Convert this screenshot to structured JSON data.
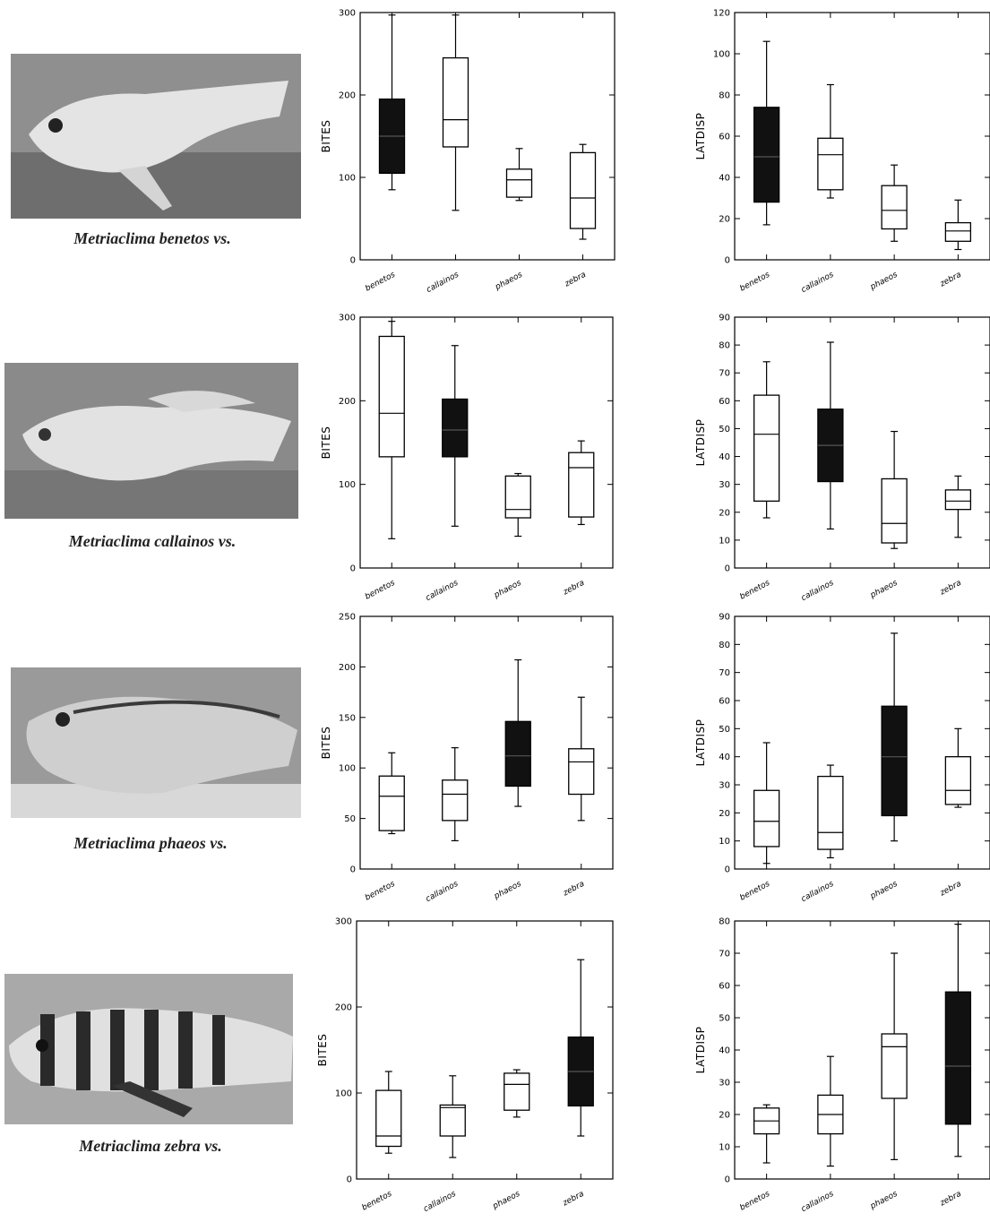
{
  "chart_data": [
    {
      "type": "box",
      "panel": "row1-bites",
      "ylabel": "BITES",
      "ylim": [
        0,
        300
      ],
      "yticks": [
        0,
        100,
        200,
        300
      ],
      "categories": [
        "benetos",
        "callainos",
        "phaeos",
        "zebra"
      ],
      "highlight": 0,
      "boxes": [
        {
          "min": 85,
          "q1": 105,
          "median": 150,
          "q3": 195,
          "max": 297
        },
        {
          "min": 60,
          "q1": 137,
          "median": 170,
          "q3": 245,
          "max": 297
        },
        {
          "min": 72,
          "q1": 76,
          "median": 97,
          "q3": 110,
          "max": 135
        },
        {
          "min": 25,
          "q1": 38,
          "median": 75,
          "q3": 130,
          "max": 140
        }
      ]
    },
    {
      "type": "box",
      "panel": "row1-latdisp",
      "ylabel": "LATDISP",
      "ylim": [
        0,
        120
      ],
      "yticks": [
        0,
        20,
        40,
        60,
        80,
        100,
        120
      ],
      "categories": [
        "benetos",
        "callainos",
        "phaeos",
        "zebra"
      ],
      "highlight": 0,
      "boxes": [
        {
          "min": 17,
          "q1": 28,
          "median": 50,
          "q3": 74,
          "max": 106
        },
        {
          "min": 30,
          "q1": 34,
          "median": 51,
          "q3": 59,
          "max": 85
        },
        {
          "min": 9,
          "q1": 15,
          "median": 24,
          "q3": 36,
          "max": 46
        },
        {
          "min": 5,
          "q1": 9,
          "median": 14,
          "q3": 18,
          "max": 29
        }
      ]
    },
    {
      "type": "box",
      "panel": "row2-bites",
      "ylabel": "BITES",
      "ylim": [
        0,
        300
      ],
      "yticks": [
        0,
        100,
        200,
        300
      ],
      "categories": [
        "benetos",
        "callainos",
        "phaeos",
        "zebra"
      ],
      "highlight": 1,
      "boxes": [
        {
          "min": 35,
          "q1": 133,
          "median": 185,
          "q3": 277,
          "max": 295
        },
        {
          "min": 50,
          "q1": 133,
          "median": 165,
          "q3": 202,
          "max": 266
        },
        {
          "min": 38,
          "q1": 60,
          "median": 70,
          "q3": 110,
          "max": 113
        },
        {
          "min": 52,
          "q1": 61,
          "median": 120,
          "q3": 138,
          "max": 152
        }
      ]
    },
    {
      "type": "box",
      "panel": "row2-latdisp",
      "ylabel": "LATDISP",
      "ylim": [
        0,
        90
      ],
      "yticks": [
        0,
        10,
        20,
        30,
        40,
        50,
        60,
        70,
        80,
        90
      ],
      "categories": [
        "benetos",
        "callainos",
        "phaeos",
        "zebra"
      ],
      "highlight": 1,
      "boxes": [
        {
          "min": 18,
          "q1": 24,
          "median": 48,
          "q3": 62,
          "max": 74
        },
        {
          "min": 14,
          "q1": 31,
          "median": 44,
          "q3": 57,
          "max": 81
        },
        {
          "min": 7,
          "q1": 9,
          "median": 16,
          "q3": 32,
          "max": 49
        },
        {
          "min": 11,
          "q1": 21,
          "median": 24,
          "q3": 28,
          "max": 33
        }
      ]
    },
    {
      "type": "box",
      "panel": "row3-bites",
      "ylabel": "BITES",
      "ylim": [
        0,
        250
      ],
      "yticks": [
        0,
        50,
        100,
        150,
        200,
        250
      ],
      "categories": [
        "benetos",
        "callainos",
        "phaeos",
        "zebra"
      ],
      "highlight": 2,
      "boxes": [
        {
          "min": 35,
          "q1": 38,
          "median": 72,
          "q3": 92,
          "max": 115
        },
        {
          "min": 28,
          "q1": 48,
          "median": 74,
          "q3": 88,
          "max": 120
        },
        {
          "min": 62,
          "q1": 82,
          "median": 112,
          "q3": 146,
          "max": 207
        },
        {
          "min": 48,
          "q1": 74,
          "median": 106,
          "q3": 119,
          "max": 170
        }
      ]
    },
    {
      "type": "box",
      "panel": "row3-latdisp",
      "ylabel": "LATDISP",
      "ylim": [
        0,
        90
      ],
      "yticks": [
        0,
        10,
        20,
        30,
        40,
        50,
        60,
        70,
        80,
        90
      ],
      "categories": [
        "benetos",
        "callainos",
        "phaeos",
        "zebra"
      ],
      "highlight": 2,
      "boxes": [
        {
          "min": 2,
          "q1": 8,
          "median": 17,
          "q3": 28,
          "max": 45
        },
        {
          "min": 4,
          "q1": 7,
          "median": 13,
          "q3": 33,
          "max": 37
        },
        {
          "min": 10,
          "q1": 19,
          "median": 40,
          "q3": 58,
          "max": 84
        },
        {
          "min": 22,
          "q1": 23,
          "median": 28,
          "q3": 40,
          "max": 50
        }
      ]
    },
    {
      "type": "box",
      "panel": "row4-bites",
      "ylabel": "BITES",
      "ylim": [
        0,
        300
      ],
      "yticks": [
        0,
        100,
        200,
        300
      ],
      "categories": [
        "benetos",
        "callainos",
        "phaeos",
        "zebra"
      ],
      "highlight": 3,
      "boxes": [
        {
          "min": 30,
          "q1": 38,
          "median": 50,
          "q3": 103,
          "max": 125
        },
        {
          "min": 25,
          "q1": 50,
          "median": 83,
          "q3": 86,
          "max": 120
        },
        {
          "min": 72,
          "q1": 80,
          "median": 110,
          "q3": 123,
          "max": 127
        },
        {
          "min": 50,
          "q1": 85,
          "median": 125,
          "q3": 165,
          "max": 255
        }
      ]
    },
    {
      "type": "box",
      "panel": "row4-latdisp",
      "ylabel": "LATDISP",
      "ylim": [
        0,
        80
      ],
      "yticks": [
        0,
        10,
        20,
        30,
        40,
        50,
        60,
        70,
        80
      ],
      "categories": [
        "benetos",
        "callainos",
        "phaeos",
        "zebra"
      ],
      "highlight": 3,
      "boxes": [
        {
          "min": 5,
          "q1": 14,
          "median": 18,
          "q3": 22,
          "max": 23
        },
        {
          "min": 4,
          "q1": 14,
          "median": 20,
          "q3": 26,
          "max": 38
        },
        {
          "min": 6,
          "q1": 25,
          "median": 41,
          "q3": 45,
          "max": 70
        },
        {
          "min": 7,
          "q1": 17,
          "median": 35,
          "q3": 58,
          "max": 79
        }
      ]
    }
  ],
  "rows": [
    {
      "caption": "Metriaclima benetos vs.",
      "photo": "benetos-photo"
    },
    {
      "caption": "Metriaclima callainos vs.",
      "photo": "callainos-photo"
    },
    {
      "caption": "Metriaclima phaeos vs.",
      "photo": "phaeos-photo"
    },
    {
      "caption": "Metriaclima zebra vs.",
      "photo": "zebra-photo"
    }
  ],
  "colors": {
    "highlight_fill": "#111111",
    "box_fill": "#ffffff",
    "stroke": "#000000"
  }
}
